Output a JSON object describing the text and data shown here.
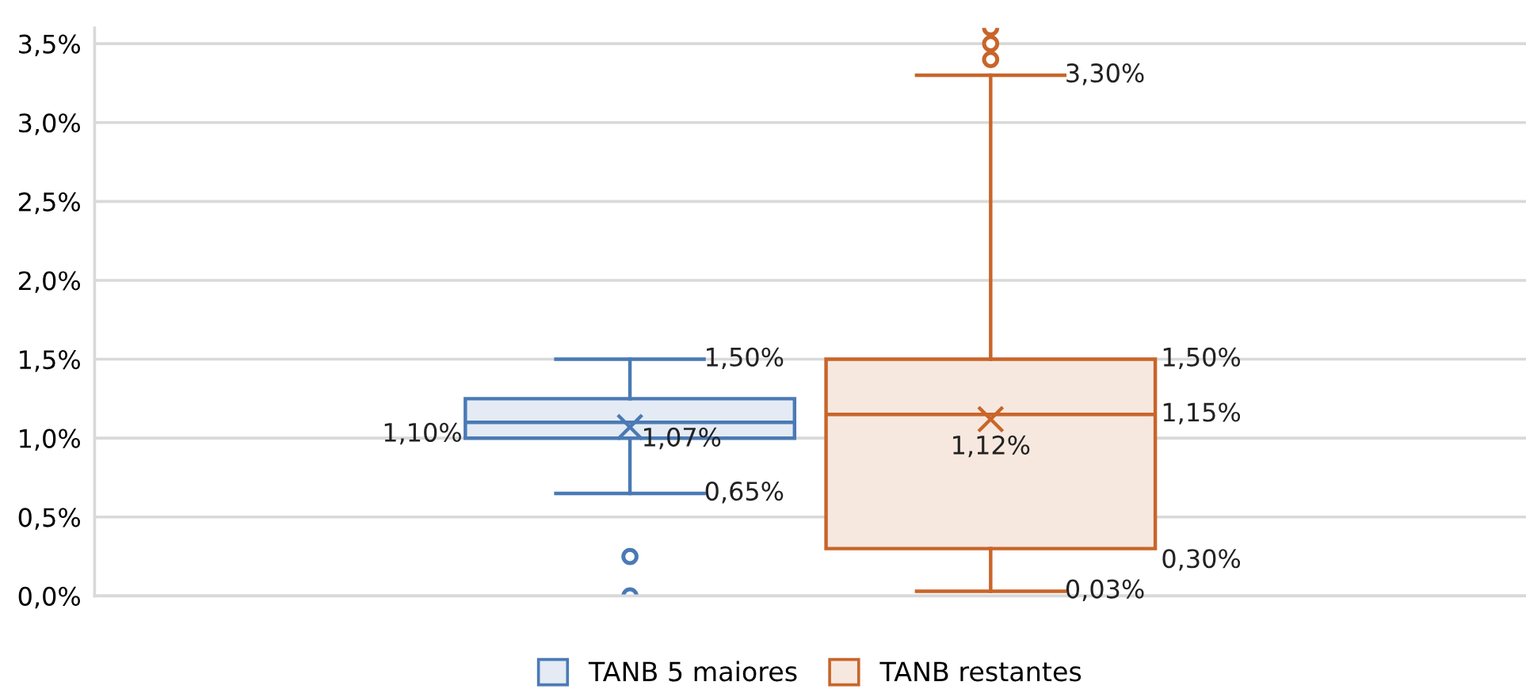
{
  "chart_data": {
    "type": "box",
    "categories": [
      null
    ],
    "series": [
      {
        "name": "TANB 5 maiores",
        "color": "#4a7ab5",
        "boxes": [
          {
            "low": 0.65,
            "q1": 1.0,
            "median": 1.1,
            "q3": 1.25,
            "high": 1.5,
            "mean": 1.07,
            "outliers": [
              0.25,
              0.0
            ]
          }
        ],
        "value_labels": [
          {
            "low": "0,65%",
            "median": "1,10%",
            "high": "1,50%",
            "mean": "1,07%"
          }
        ]
      },
      {
        "name": "TANB restantes",
        "color": "#c8652a",
        "boxes": [
          {
            "low": 0.03,
            "q1": 0.3,
            "median": 1.15,
            "q3": 1.5,
            "high": 3.3,
            "mean": 1.12,
            "outliers": [
              3.4,
              3.5,
              3.6
            ]
          }
        ],
        "value_labels": [
          {
            "low": "0,03%",
            "q1": "0,30%",
            "median": "1,15%",
            "q3": "1,50%",
            "high": "3,30%",
            "mean": "1,12%"
          }
        ]
      }
    ],
    "ylim": [
      0,
      3.6
    ],
    "yticks": [
      {
        "value": 0,
        "label": "0,0%"
      },
      {
        "value": 0.5,
        "label": "0,5%"
      },
      {
        "value": 1.0,
        "label": "1,0%"
      },
      {
        "value": 1.5,
        "label": "1,5%"
      },
      {
        "value": 2.0,
        "label": "2,0%"
      },
      {
        "value": 2.5,
        "label": "2,5%"
      },
      {
        "value": 3.0,
        "label": "3,0%"
      },
      {
        "value": 3.5,
        "label": "3,5%"
      }
    ],
    "grid": "y",
    "legend": "bottom"
  }
}
